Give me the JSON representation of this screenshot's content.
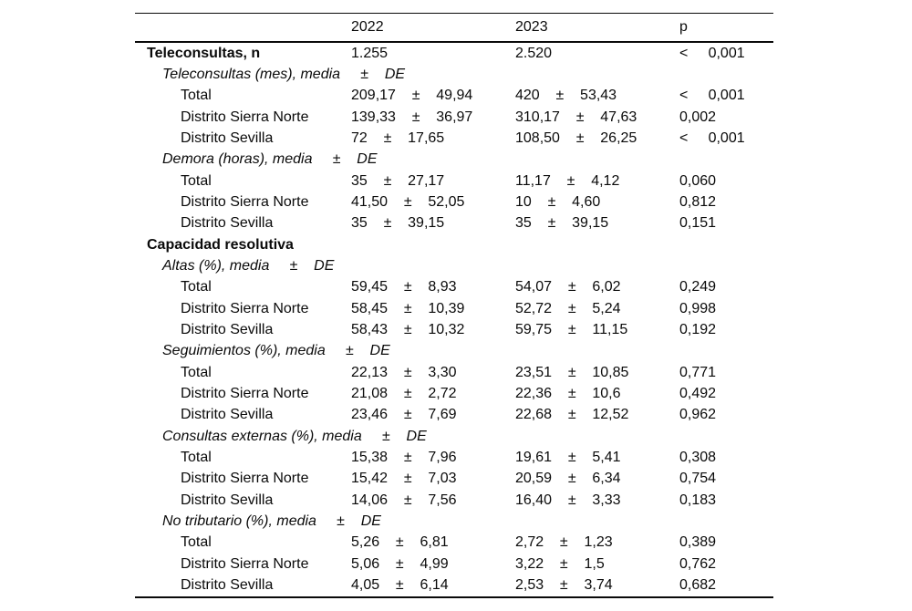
{
  "table": {
    "columns": {
      "year1": "2022",
      "year2": "2023",
      "p": "p"
    },
    "symbols": {
      "pm": "±",
      "lt": "<",
      "de": "DE"
    },
    "rows": [
      {
        "type": "bold",
        "label": "Teleconsultas, n",
        "y1": {
          "n": "1.255"
        },
        "y2": {
          "n": "2.520"
        },
        "p": {
          "lt": true,
          "v": "0,001"
        }
      },
      {
        "type": "sub",
        "label": "Teleconsultas (mes), media"
      },
      {
        "type": "data",
        "label": "Total",
        "y1": {
          "m": "209,17",
          "sd": "49,94"
        },
        "y2": {
          "m": "420",
          "sd": "53,43"
        },
        "p": {
          "lt": true,
          "v": "0,001"
        }
      },
      {
        "type": "data",
        "label": "Distrito Sierra Norte",
        "y1": {
          "m": "139,33",
          "sd": "36,97"
        },
        "y2": {
          "m": "310,17",
          "sd": "47,63"
        },
        "p": {
          "v": "0,002"
        }
      },
      {
        "type": "data",
        "label": "Distrito Sevilla",
        "y1": {
          "m": "72",
          "sd": "17,65"
        },
        "y2": {
          "m": "108,50",
          "sd": "26,25"
        },
        "p": {
          "lt": true,
          "v": "0,001"
        }
      },
      {
        "type": "sub",
        "label": "Demora (horas), media"
      },
      {
        "type": "data",
        "label": "Total",
        "y1": {
          "m": "35",
          "sd": "27,17"
        },
        "y2": {
          "m": "11,17",
          "sd": "4,12"
        },
        "p": {
          "v": "0,060"
        }
      },
      {
        "type": "data",
        "label": "Distrito Sierra Norte",
        "y1": {
          "m": "41,50",
          "sd": "52,05"
        },
        "y2": {
          "m": "10",
          "sd": "4,60"
        },
        "p": {
          "v": "0,812"
        }
      },
      {
        "type": "data",
        "label": "Distrito Sevilla",
        "y1": {
          "m": "35",
          "sd": "39,15"
        },
        "y2": {
          "m": "35",
          "sd": "39,15"
        },
        "p": {
          "v": "0,151"
        }
      },
      {
        "type": "bold",
        "label": "Capacidad resolutiva"
      },
      {
        "type": "sub",
        "label": "Altas (%), media"
      },
      {
        "type": "data",
        "label": "Total",
        "y1": {
          "m": "59,45",
          "sd": "8,93"
        },
        "y2": {
          "m": "54,07",
          "sd": "6,02"
        },
        "p": {
          "v": "0,249"
        }
      },
      {
        "type": "data",
        "label": "Distrito Sierra Norte",
        "y1": {
          "m": "58,45",
          "sd": "10,39"
        },
        "y2": {
          "m": "52,72",
          "sd": "5,24"
        },
        "p": {
          "v": "0,998"
        }
      },
      {
        "type": "data",
        "label": "Distrito Sevilla",
        "y1": {
          "m": "58,43",
          "sd": "10,32"
        },
        "y2": {
          "m": "59,75",
          "sd": "11,15"
        },
        "p": {
          "v": "0,192"
        }
      },
      {
        "type": "sub",
        "label": "Seguimientos (%), media"
      },
      {
        "type": "data",
        "label": "Total",
        "y1": {
          "m": "22,13",
          "sd": "3,30"
        },
        "y2": {
          "m": "23,51",
          "sd": "10,85"
        },
        "p": {
          "v": "0,771"
        }
      },
      {
        "type": "data",
        "label": "Distrito Sierra Norte",
        "y1": {
          "m": "21,08",
          "sd": "2,72"
        },
        "y2": {
          "m": "22,36",
          "sd": "10,6"
        },
        "p": {
          "v": "0,492"
        }
      },
      {
        "type": "data",
        "label": "Distrito Sevilla",
        "y1": {
          "m": "23,46",
          "sd": "7,69"
        },
        "y2": {
          "m": "22,68",
          "sd": "12,52"
        },
        "p": {
          "v": "0,962"
        }
      },
      {
        "type": "sub",
        "label": "Consultas externas (%), media"
      },
      {
        "type": "data",
        "label": "Total",
        "y1": {
          "m": "15,38",
          "sd": "7,96"
        },
        "y2": {
          "m": "19,61",
          "sd": "5,41"
        },
        "p": {
          "v": "0,308"
        }
      },
      {
        "type": "data",
        "label": "Distrito Sierra Norte",
        "y1": {
          "m": "15,42",
          "sd": "7,03"
        },
        "y2": {
          "m": "20,59",
          "sd": "6,34"
        },
        "p": {
          "v": "0,754"
        }
      },
      {
        "type": "data",
        "label": "Distrito Sevilla",
        "y1": {
          "m": "14,06",
          "sd": "7,56"
        },
        "y2": {
          "m": "16,40",
          "sd": "3,33"
        },
        "p": {
          "v": "0,183"
        }
      },
      {
        "type": "sub",
        "label": "No tributario (%), media"
      },
      {
        "type": "data",
        "label": "Total",
        "y1": {
          "m": "5,26",
          "sd": "6,81"
        },
        "y2": {
          "m": "2,72",
          "sd": "1,23"
        },
        "p": {
          "v": "0,389"
        }
      },
      {
        "type": "data",
        "label": "Distrito Sierra Norte",
        "y1": {
          "m": "5,06",
          "sd": "4,99"
        },
        "y2": {
          "m": "3,22",
          "sd": "1,5"
        },
        "p": {
          "v": "0,762"
        }
      },
      {
        "type": "data",
        "label": "Distrito Sevilla",
        "y1": {
          "m": "4,05",
          "sd": "6,14"
        },
        "y2": {
          "m": "2,53",
          "sd": "3,74"
        },
        "p": {
          "v": "0,682"
        }
      }
    ]
  }
}
